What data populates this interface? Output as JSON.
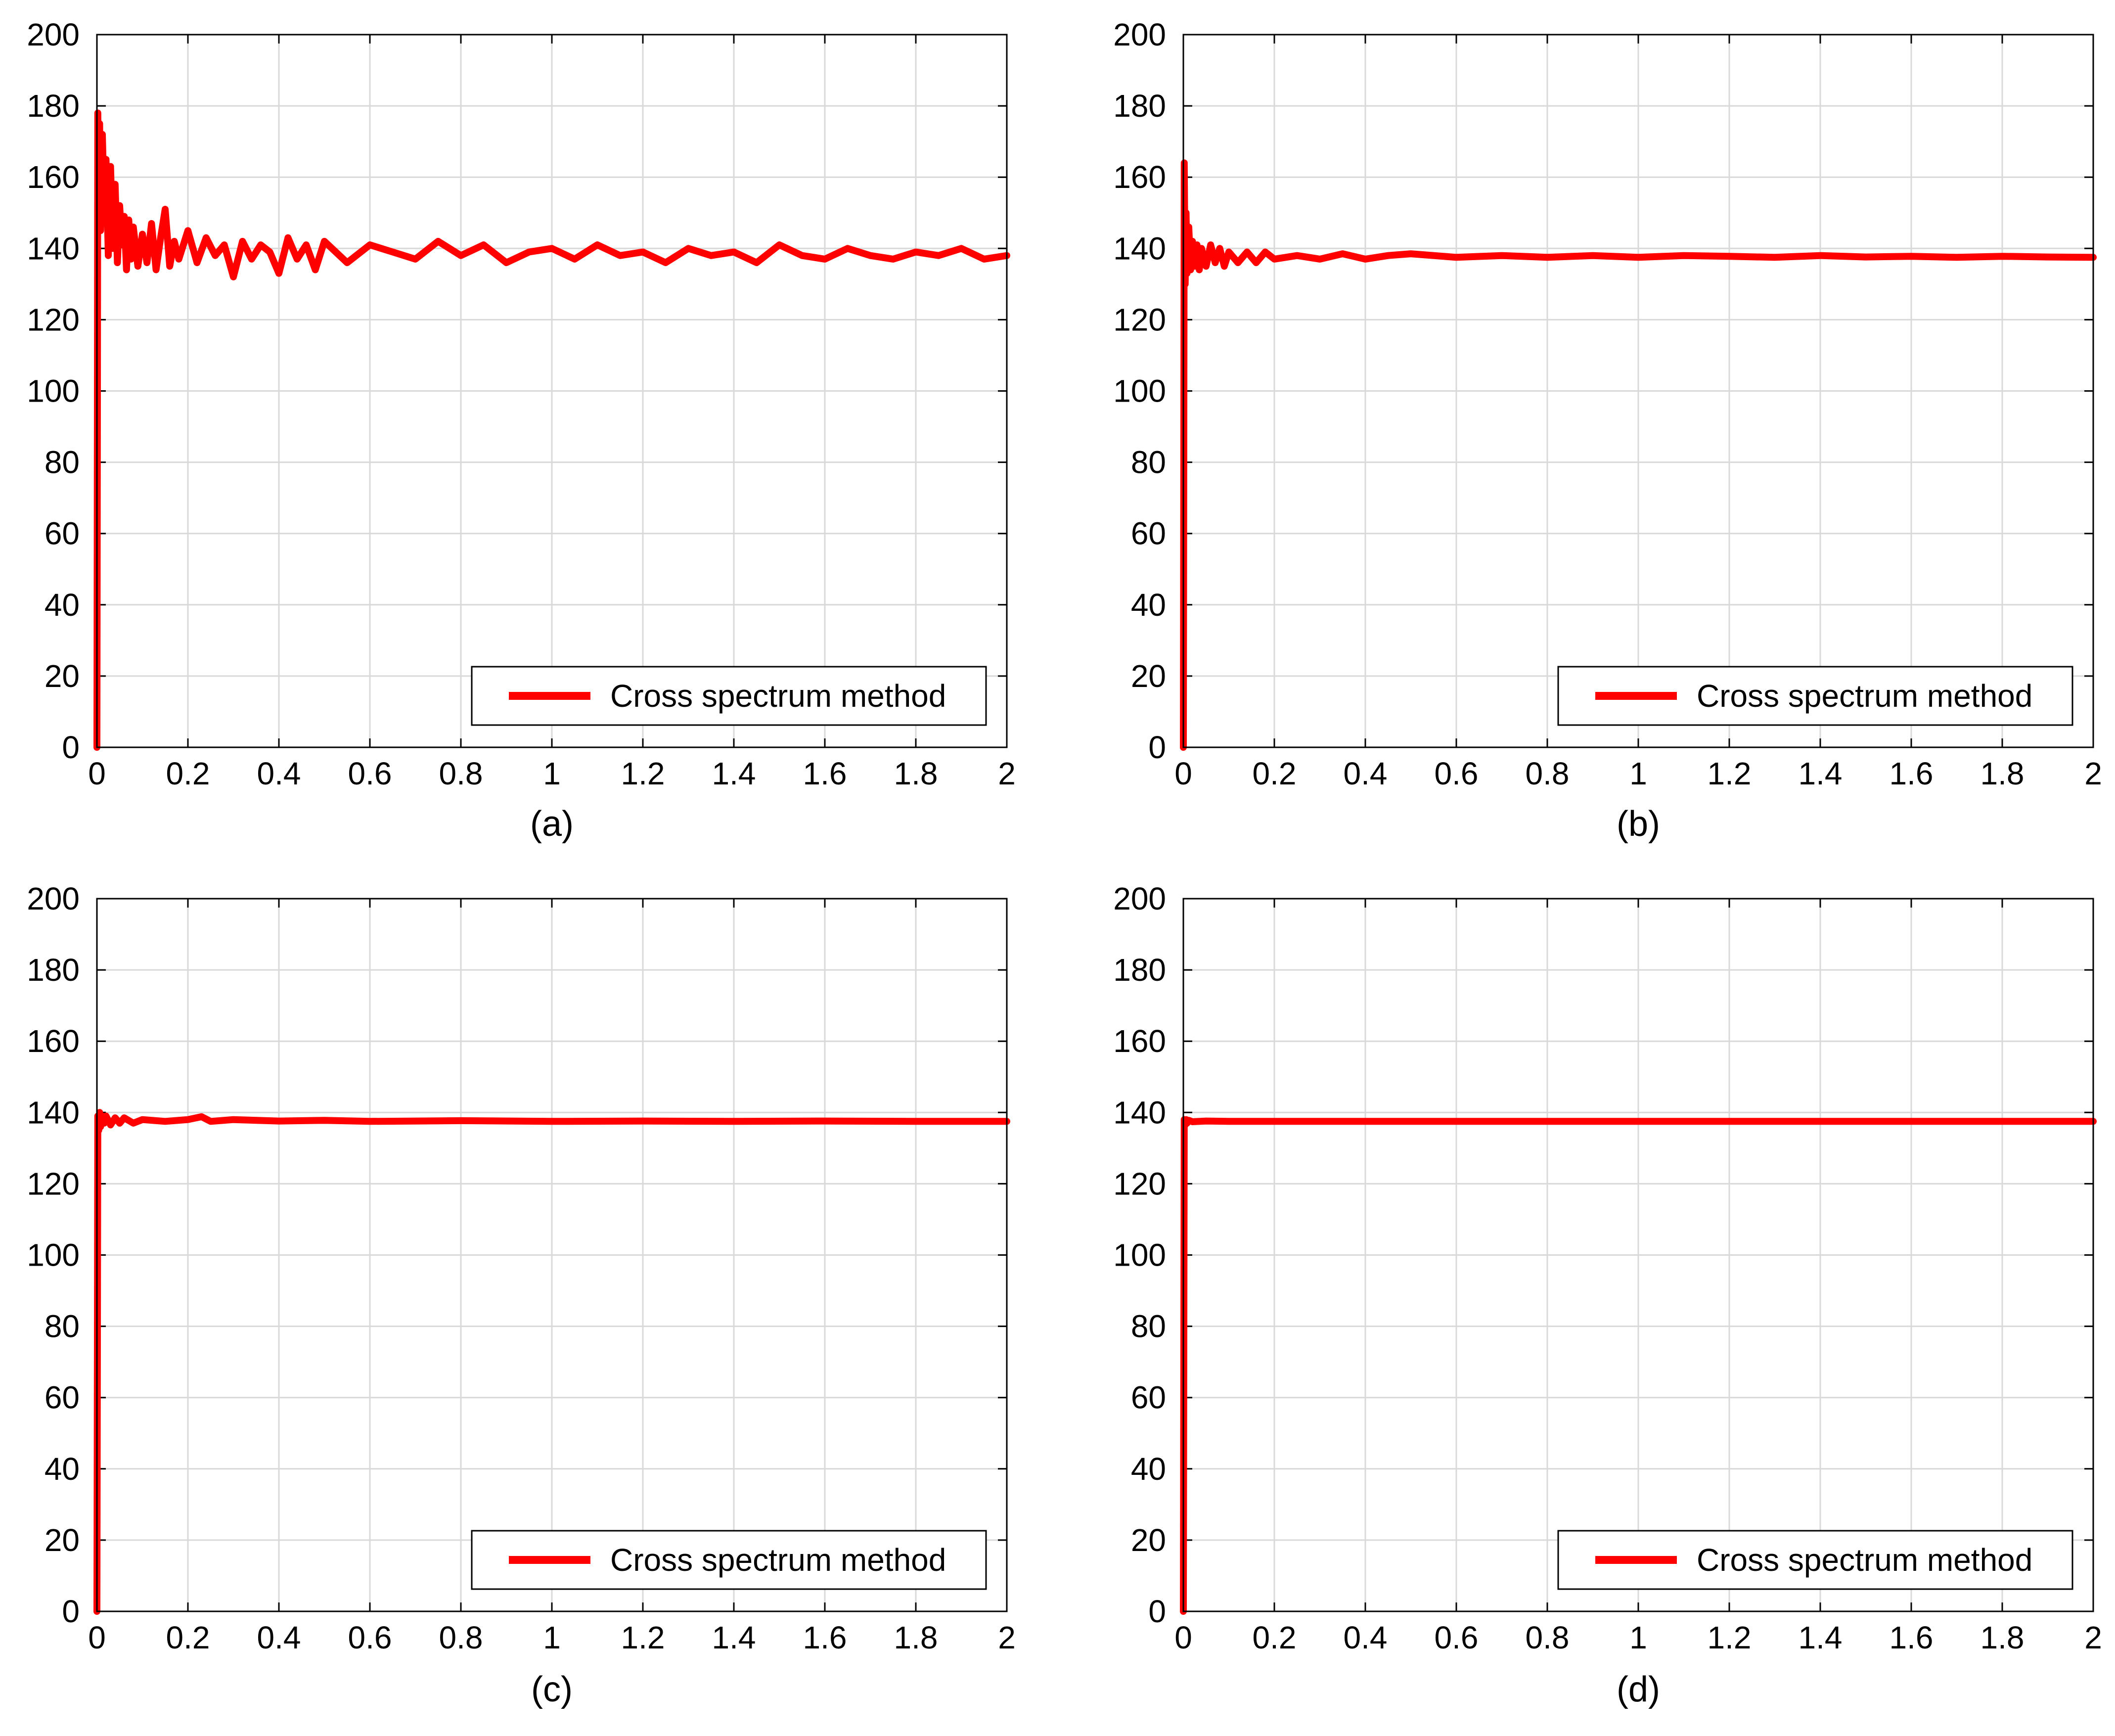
{
  "chart_data": [
    {
      "type": "line",
      "caption": "(a)",
      "xlabel": "",
      "ylabel": "",
      "xlim": [
        0,
        2
      ],
      "ylim": [
        0,
        200
      ],
      "xticks": [
        "0",
        "0.2",
        "0.4",
        "0.6",
        "0.8",
        "1",
        "1.2",
        "1.4",
        "1.6",
        "1.8",
        "2"
      ],
      "yticks": [
        "0",
        "20",
        "40",
        "60",
        "80",
        "100",
        "120",
        "140",
        "160",
        "180",
        "200"
      ],
      "grid": true,
      "legend_position": "bottom-right",
      "series": [
        {
          "name": "Cross spectrum method",
          "color": "#ff0000",
          "x": [
            0,
            0.002,
            0.004,
            0.006,
            0.008,
            0.012,
            0.016,
            0.02,
            0.025,
            0.03,
            0.035,
            0.04,
            0.045,
            0.05,
            0.055,
            0.06,
            0.065,
            0.07,
            0.075,
            0.08,
            0.09,
            0.1,
            0.11,
            0.12,
            0.13,
            0.14,
            0.15,
            0.16,
            0.17,
            0.18,
            0.2,
            0.22,
            0.24,
            0.26,
            0.28,
            0.3,
            0.32,
            0.34,
            0.36,
            0.38,
            0.4,
            0.42,
            0.44,
            0.46,
            0.48,
            0.5,
            0.55,
            0.6,
            0.65,
            0.7,
            0.75,
            0.8,
            0.85,
            0.9,
            0.95,
            1.0,
            1.05,
            1.1,
            1.15,
            1.2,
            1.25,
            1.3,
            1.35,
            1.4,
            1.45,
            1.5,
            1.55,
            1.6,
            1.65,
            1.7,
            1.75,
            1.8,
            1.85,
            1.9,
            1.95,
            2.0
          ],
          "y": [
            0,
            178,
            150,
            175,
            145,
            172,
            152,
            165,
            138,
            163,
            140,
            158,
            136,
            152,
            141,
            149,
            134,
            148,
            137,
            146,
            135,
            144,
            136,
            147,
            134,
            143,
            151,
            135,
            142,
            137,
            145,
            136,
            143,
            138,
            141,
            132,
            142,
            137,
            141,
            139,
            133,
            143,
            137,
            141,
            134,
            142,
            136,
            141,
            139,
            137,
            142,
            138,
            141,
            136,
            139,
            140,
            137,
            141,
            138,
            139,
            136,
            140,
            138,
            139,
            136,
            141,
            138,
            137,
            140,
            138,
            137,
            139,
            138,
            140,
            137,
            138
          ]
        }
      ]
    },
    {
      "type": "line",
      "caption": "(b)",
      "xlabel": "",
      "ylabel": "",
      "xlim": [
        0,
        2
      ],
      "ylim": [
        0,
        200
      ],
      "xticks": [
        "0",
        "0.2",
        "0.4",
        "0.6",
        "0.8",
        "1",
        "1.2",
        "1.4",
        "1.6",
        "1.8",
        "2"
      ],
      "yticks": [
        "0",
        "20",
        "40",
        "60",
        "80",
        "100",
        "120",
        "140",
        "160",
        "180",
        "200"
      ],
      "grid": true,
      "legend_position": "bottom-right",
      "series": [
        {
          "name": "Cross spectrum method",
          "color": "#ff0000",
          "x": [
            0,
            0.002,
            0.004,
            0.006,
            0.008,
            0.012,
            0.016,
            0.02,
            0.025,
            0.03,
            0.035,
            0.04,
            0.05,
            0.06,
            0.07,
            0.08,
            0.09,
            0.1,
            0.12,
            0.14,
            0.16,
            0.18,
            0.2,
            0.25,
            0.3,
            0.35,
            0.4,
            0.45,
            0.5,
            0.6,
            0.7,
            0.8,
            0.9,
            1.0,
            1.1,
            1.2,
            1.3,
            1.4,
            1.5,
            1.6,
            1.7,
            1.8,
            1.9,
            2.0
          ],
          "y": [
            0,
            164,
            130,
            150,
            133,
            146,
            134,
            142,
            135,
            141,
            134,
            140,
            135,
            141,
            136,
            140,
            135,
            139,
            136,
            139,
            136,
            139,
            137,
            138,
            137,
            138.5,
            137,
            138,
            138.5,
            137.5,
            138,
            137.5,
            138,
            137.5,
            138,
            137.8,
            137.5,
            138,
            137.6,
            137.8,
            137.5,
            137.8,
            137.6,
            137.5
          ]
        }
      ]
    },
    {
      "type": "line",
      "caption": "(c)",
      "xlabel": "",
      "ylabel": "",
      "xlim": [
        0,
        2
      ],
      "ylim": [
        0,
        200
      ],
      "xticks": [
        "0",
        "0.2",
        "0.4",
        "0.6",
        "0.8",
        "1",
        "1.2",
        "1.4",
        "1.6",
        "1.8",
        "2"
      ],
      "yticks": [
        "0",
        "20",
        "40",
        "60",
        "80",
        "100",
        "120",
        "140",
        "160",
        "180",
        "200"
      ],
      "grid": true,
      "legend_position": "bottom-right",
      "series": [
        {
          "name": "Cross spectrum method",
          "color": "#ff0000",
          "x": [
            0,
            0.002,
            0.004,
            0.006,
            0.008,
            0.012,
            0.016,
            0.02,
            0.03,
            0.04,
            0.05,
            0.06,
            0.08,
            0.1,
            0.15,
            0.2,
            0.23,
            0.25,
            0.3,
            0.4,
            0.5,
            0.6,
            0.8,
            1.0,
            1.2,
            1.4,
            1.6,
            1.8,
            2.0
          ],
          "y": [
            0,
            139,
            135,
            140,
            136,
            139,
            137,
            139,
            136.5,
            138.5,
            137,
            138.5,
            137,
            138,
            137.5,
            138,
            138.8,
            137.5,
            138,
            137.6,
            137.8,
            137.5,
            137.7,
            137.5,
            137.6,
            137.5,
            137.6,
            137.5,
            137.5
          ]
        }
      ]
    },
    {
      "type": "line",
      "caption": "(d)",
      "xlabel": "",
      "ylabel": "",
      "xlim": [
        0,
        2
      ],
      "ylim": [
        0,
        200
      ],
      "xticks": [
        "0",
        "0.2",
        "0.4",
        "0.6",
        "0.8",
        "1",
        "1.2",
        "1.4",
        "1.6",
        "1.8",
        "2"
      ],
      "yticks": [
        "0",
        "20",
        "40",
        "60",
        "80",
        "100",
        "120",
        "140",
        "160",
        "180",
        "200"
      ],
      "grid": true,
      "legend_position": "bottom-right",
      "series": [
        {
          "name": "Cross spectrum method",
          "color": "#ff0000",
          "x": [
            0,
            0.002,
            0.004,
            0.006,
            0.008,
            0.012,
            0.02,
            0.05,
            0.1,
            0.5,
            1.0,
            1.5,
            2.0
          ],
          "y": [
            0,
            138,
            136.5,
            138,
            137,
            137.8,
            137.4,
            137.6,
            137.5,
            137.5,
            137.5,
            137.5,
            137.5
          ]
        }
      ]
    }
  ],
  "style": {
    "line_color": "#ff0000",
    "grid_color": "#d9d9d9",
    "axis_color": "#000000"
  }
}
